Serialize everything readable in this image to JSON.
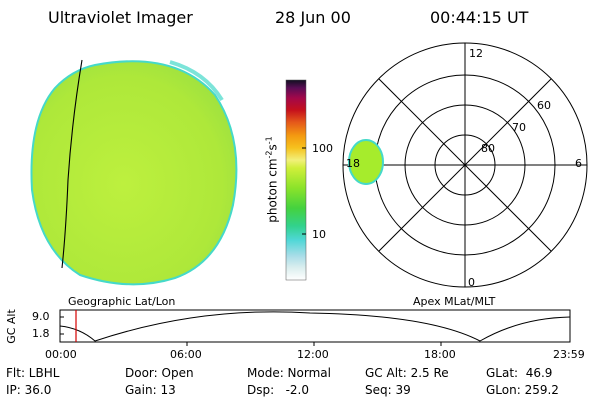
{
  "header": {
    "instrument": "Ultraviolet Imager",
    "date": "28 Jun 00",
    "time": "00:44:15 UT"
  },
  "colorbar": {
    "axis_label": "photon cm",
    "axis_label_exp1": "-2",
    "axis_label_mid": "s",
    "axis_label_exp2": "-1",
    "ticks": [
      "100",
      "10"
    ]
  },
  "polar": {
    "mlt_labels": [
      "12",
      "6",
      "18",
      "0"
    ],
    "lat_labels": [
      "60",
      "70",
      "80"
    ]
  },
  "map_labels": {
    "left": "Geographic Lat/Lon",
    "right": "Apex MLat/MLT"
  },
  "altitude_plot": {
    "ylabel": "GC Alt",
    "ytick_top": "9.0",
    "ytick_bottom": "1.8",
    "xticks": [
      "00:00",
      "06:00",
      "12:00",
      "18:00",
      "23:59"
    ]
  },
  "info": {
    "filter": "Flt: LBHL",
    "ip": "IP: 36.0",
    "door": "Door: Open",
    "gain": "Gain: 13",
    "mode": "Mode: Normal",
    "dsp": "Dsp:   -2.0",
    "gc_alt": "GC Alt: 2.5 Re",
    "seq": "Seq: 39",
    "glat": "GLat:  46.9",
    "glon": "GLon: 259.2"
  },
  "colors": {
    "disk_fill": "#b8ee3c",
    "disk_edge": "#45d9c9",
    "oval_fill": "#a6ec2c",
    "marker_red": "#d40000"
  }
}
